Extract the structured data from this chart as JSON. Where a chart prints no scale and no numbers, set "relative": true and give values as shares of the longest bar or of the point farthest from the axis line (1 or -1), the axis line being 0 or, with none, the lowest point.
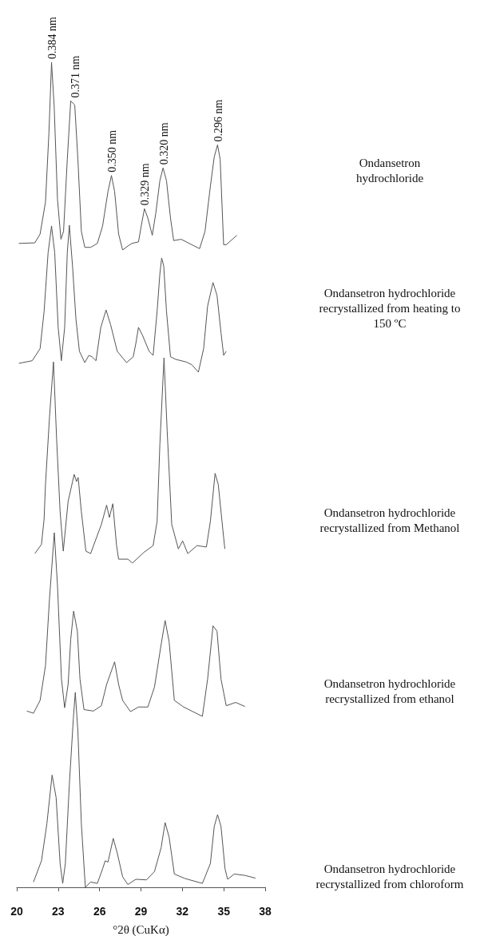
{
  "chart_data": [
    {
      "type": "line",
      "relative": true,
      "xlim": [
        20,
        38
      ],
      "xticks": [
        20,
        23,
        26,
        29,
        32,
        35,
        38
      ],
      "tick_labels": false,
      "legend": false,
      "marker": "none",
      "line_style": "solid",
      "series": [
        {
          "name": "Ondansetron hydrochloride",
          "color": "#555555",
          "x": [
            20.15,
            21.31,
            21.69,
            22.08,
            22.33,
            22.52,
            22.71,
            22.95,
            23.2,
            23.39,
            23.66,
            23.91,
            24.2,
            24.43,
            24.68,
            24.93,
            25.35,
            25.84,
            26.22,
            26.61,
            26.86,
            27.09,
            27.38,
            27.67,
            28.05,
            28.34,
            28.82,
            29.02,
            29.25,
            29.5,
            29.82,
            30.08,
            30.37,
            30.6,
            30.85,
            31.14,
            31.37,
            31.91,
            32.68,
            33.25,
            33.64,
            34.03,
            34.31,
            34.55,
            34.74,
            34.99,
            35.18,
            35.95
          ],
          "values": [
            0.035,
            0.038,
            0.085,
            0.255,
            0.624,
            1,
            0.766,
            0.27,
            0.057,
            0.099,
            0.482,
            0.794,
            0.773,
            0.482,
            0.099,
            0.014,
            0.014,
            0.035,
            0.128,
            0.312,
            0.397,
            0.312,
            0.085,
            0,
            0.021,
            0.035,
            0.043,
            0.128,
            0.22,
            0.17,
            0.078,
            0.199,
            0.369,
            0.437,
            0.369,
            0.17,
            0.05,
            0.057,
            0.028,
            0.007,
            0.099,
            0.34,
            0.496,
            0.56,
            0.482,
            0.028,
            0.028,
            0.078
          ]
        }
      ],
      "annotations": [
        {
          "text": "0.384 nm",
          "x": 22.52,
          "y": 1
        },
        {
          "text": "0.371 nm",
          "x": 24.2,
          "y": 0.794
        },
        {
          "text": "0.350 nm",
          "x": 26.86,
          "y": 0.397
        },
        {
          "text": "0.329 nm",
          "x": 29.25,
          "y": 0.22
        },
        {
          "text": "0.320 nm",
          "x": 30.6,
          "y": 0.437
        },
        {
          "text": "0.296 nm",
          "x": 34.55,
          "y": 0.56
        }
      ]
    },
    {
      "type": "line",
      "relative": true,
      "xlim": [
        20,
        38
      ],
      "xticks": [
        20,
        23,
        26,
        29,
        32,
        35,
        38
      ],
      "tick_labels": false,
      "legend": false,
      "marker": "none",
      "line_style": "solid",
      "series": [
        {
          "name": "Ondansetron hydrochloride recrystallized from heating to 150 ºC",
          "color": "#555555",
          "x": [
            20.15,
            21.12,
            21.69,
            21.98,
            22.27,
            22.52,
            22.75,
            23,
            23.23,
            23.47,
            23.66,
            23.81,
            24.04,
            24.29,
            24.54,
            24.93,
            25.22,
            25.45,
            25.74,
            26.09,
            26.47,
            26.8,
            27.28,
            27.96,
            28.44,
            28.63,
            28.82,
            29.11,
            29.59,
            29.88,
            30.17,
            30.37,
            30.5,
            30.65,
            30.85,
            31.14,
            31.52,
            32.29,
            32.68,
            33.16,
            33.54,
            33.83,
            34.22,
            34.51,
            34.8,
            34.99,
            35.18
          ],
          "values": [
            0.06,
            0.078,
            0.16,
            0.414,
            0.813,
            0.995,
            0.813,
            0.305,
            0.078,
            0.305,
            0.813,
            1,
            0.722,
            0.359,
            0.142,
            0.065,
            0.114,
            0.105,
            0.078,
            0.305,
            0.423,
            0.323,
            0.142,
            0.065,
            0.105,
            0.196,
            0.305,
            0.251,
            0.142,
            0.114,
            0.414,
            0.668,
            0.777,
            0.722,
            0.414,
            0.105,
            0.087,
            0.069,
            0.051,
            0,
            0.16,
            0.45,
            0.61,
            0.523,
            0.269,
            0.114,
            0.142
          ]
        }
      ]
    },
    {
      "type": "line",
      "relative": true,
      "xlim": [
        20,
        38
      ],
      "xticks": [
        20,
        23,
        26,
        29,
        32,
        35,
        38
      ],
      "tick_labels": false,
      "legend": false,
      "marker": "none",
      "line_style": "solid",
      "series": [
        {
          "name": "Ondansetron hydrochloride recrystallized from Methanol",
          "color": "#555555",
          "x": [
            21.31,
            21.79,
            21.98,
            22.08,
            22.37,
            22.66,
            22.89,
            23.14,
            23.37,
            23.72,
            24.16,
            24.33,
            24.45,
            24.68,
            25.01,
            25.35,
            26.13,
            26.51,
            26.71,
            26.96,
            27.23,
            27.38,
            28.05,
            28.38,
            29.21,
            29.88,
            30.17,
            30.37,
            30.67,
            30.9,
            31.23,
            31.71,
            32.02,
            32.39,
            33.06,
            33.74,
            34.03,
            34.37,
            34.6,
            34.99,
            35.08
          ],
          "values": [
            0.046,
            0.091,
            0.214,
            0.383,
            0.709,
            0.98,
            0.6,
            0.25,
            0.058,
            0.3,
            0.432,
            0.397,
            0.417,
            0.25,
            0.058,
            0.046,
            0.188,
            0.282,
            0.222,
            0.289,
            0.086,
            0.019,
            0.019,
            0,
            0.052,
            0.085,
            0.203,
            0.578,
            1,
            0.643,
            0.188,
            0.069,
            0.108,
            0.046,
            0.085,
            0.078,
            0.203,
            0.437,
            0.383,
            0.125,
            0.069
          ]
        }
      ]
    },
    {
      "type": "line",
      "relative": true,
      "xlim": [
        20,
        38
      ],
      "xticks": [
        20,
        23,
        26,
        29,
        32,
        35,
        38
      ],
      "tick_labels": false,
      "legend": false,
      "marker": "none",
      "line_style": "solid",
      "series": [
        {
          "name": "Ondansetron hydrochloride recrystallized from ethanol",
          "color": "#555555",
          "x": [
            20.73,
            21.21,
            21.69,
            22.08,
            22.37,
            22.72,
            22.95,
            23.24,
            23.47,
            23.72,
            23.91,
            24.12,
            24.39,
            24.58,
            24.87,
            25.55,
            26.13,
            26.51,
            27.09,
            27.38,
            27.67,
            28.24,
            28.82,
            29.5,
            29.98,
            30.46,
            30.75,
            31.04,
            31.42,
            32.09,
            32.68,
            33.45,
            33.83,
            34.22,
            34.51,
            34.8,
            35.18,
            35.86,
            36.53
          ],
          "values": [
            0.029,
            0.017,
            0.087,
            0.276,
            0.638,
            1,
            0.712,
            0.203,
            0.047,
            0.174,
            0.42,
            0.573,
            0.464,
            0.203,
            0.037,
            0.029,
            0.058,
            0.174,
            0.297,
            0.174,
            0.087,
            0.026,
            0.051,
            0.051,
            0.16,
            0.391,
            0.522,
            0.407,
            0.087,
            0.051,
            0.029,
            0,
            0.203,
            0.493,
            0.464,
            0.203,
            0.058,
            0.076,
            0.054
          ]
        }
      ]
    },
    {
      "type": "line",
      "relative": true,
      "xlim": [
        20,
        38
      ],
      "xticks": [
        20,
        23,
        26,
        29,
        32,
        35,
        38
      ],
      "tick_labels": "x",
      "xlabel": "°2θ (CuKα)",
      "legend": false,
      "marker": "none",
      "line_style": "solid",
      "series": [
        {
          "name": "Ondansetron hydrochloride recrystallized from chloroform",
          "color": "#555555",
          "x": [
            21.21,
            21.79,
            22.18,
            22.56,
            22.85,
            23.14,
            23.33,
            23.52,
            23.81,
            24.1,
            24.24,
            24.43,
            24.68,
            24.97,
            25.35,
            25.84,
            26.22,
            26.41,
            26.61,
            26.99,
            27.28,
            27.67,
            28.05,
            28.63,
            29.4,
            29.98,
            30.46,
            30.75,
            31.04,
            31.42,
            32.19,
            33.45,
            34.03,
            34.31,
            34.55,
            34.8,
            35.09,
            35.28,
            35.76,
            36.53,
            37.3
          ],
          "values": [
            0.027,
            0.136,
            0.325,
            0.576,
            0.461,
            0.122,
            0.02,
            0.122,
            0.528,
            0.867,
            1,
            0.799,
            0.325,
            0,
            0.027,
            0.02,
            0.095,
            0.136,
            0.129,
            0.251,
            0.176,
            0.054,
            0.014,
            0.041,
            0.038,
            0.081,
            0.203,
            0.332,
            0.257,
            0.068,
            0.045,
            0.02,
            0.122,
            0.312,
            0.373,
            0.312,
            0.095,
            0.041,
            0.068,
            0.061,
            0.047
          ]
        }
      ]
    }
  ]
}
